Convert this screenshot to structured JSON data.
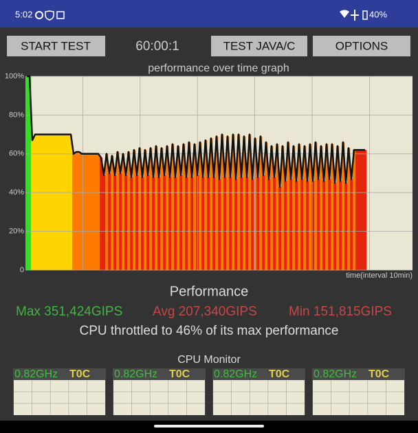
{
  "status_bar": {
    "time": "5:02",
    "battery": "40%"
  },
  "buttons": {
    "start": "START TEST",
    "timer": "60:00:1",
    "test": "TEST JAVA/C",
    "options": "OPTIONS"
  },
  "graph": {
    "title": "performance over time graph",
    "x_label": "time(interval 10min)",
    "ylim": [
      0,
      100
    ],
    "yticks": [
      {
        "value": 100,
        "label": "100%"
      },
      {
        "value": 80,
        "label": "80%"
      },
      {
        "value": 60,
        "label": "60%"
      },
      {
        "value": 40,
        "label": "40%"
      },
      {
        "value": 20,
        "label": "20%"
      },
      0
    ],
    "colors": {
      "start": "#33dd22",
      "warm": "#ffd400",
      "hot": "#ff7a00",
      "throttle": "#e3260c",
      "line": "#111111"
    },
    "values": [
      100,
      100,
      67,
      70,
      70,
      70,
      70,
      70,
      70,
      70,
      70,
      70,
      70,
      70,
      70,
      70,
      70,
      60,
      61,
      61,
      60,
      60,
      60,
      60,
      60,
      60,
      60,
      58,
      49,
      60,
      50,
      59,
      49,
      61,
      50,
      60,
      49,
      61,
      48,
      62,
      49,
      63,
      48,
      62,
      49,
      63,
      48,
      64,
      48,
      63,
      49,
      64,
      48,
      65,
      48,
      64,
      49,
      65,
      48,
      66,
      48,
      65,
      49,
      66,
      48,
      67,
      48,
      68,
      48,
      69,
      47,
      70,
      48,
      69,
      48,
      70,
      47,
      70,
      48,
      69,
      48,
      70,
      47,
      68,
      48,
      69,
      49,
      66,
      47,
      64,
      48,
      65,
      43,
      64,
      46,
      66,
      47,
      64,
      46,
      65,
      47,
      64,
      46,
      65,
      46,
      66,
      47,
      64,
      46,
      65,
      47,
      65,
      45,
      64,
      46,
      66,
      45,
      63,
      47,
      62,
      62,
      62,
      62,
      62
    ]
  },
  "performance": {
    "title": "Performance",
    "max": "Max 351,424GIPS",
    "avg": "Avg 207,340GIPS",
    "min": "Min 151,815GIPS",
    "summary": "CPU throttled to 46% of its max performance"
  },
  "cpu_monitor": {
    "title": "CPU Monitor",
    "cores": [
      {
        "freq": "0.82GHz",
        "temp": "T0C"
      },
      {
        "freq": "0.82GHz",
        "temp": "T0C"
      },
      {
        "freq": "0.82GHz",
        "temp": "T0C"
      },
      {
        "freq": "0.82GHz",
        "temp": "T0C"
      }
    ]
  }
}
